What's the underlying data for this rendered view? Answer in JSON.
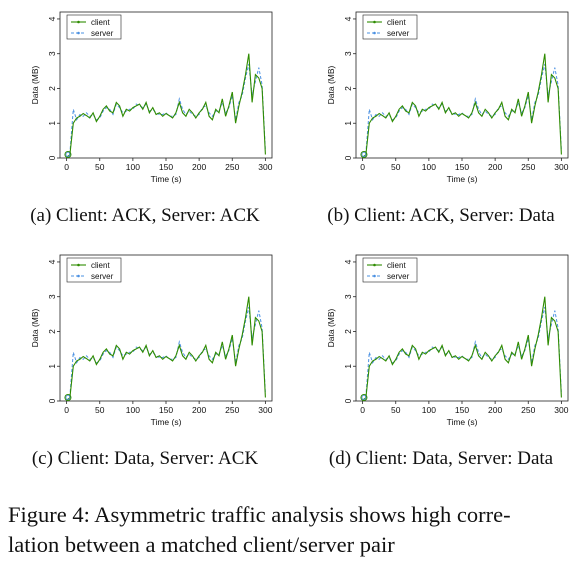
{
  "figure": {
    "caption": "Figure 4: Asymmetric traffic analysis shows high correlation between a matched client/server pair",
    "caption_line1": "Figure 4: Asymmetric traffic analysis shows high corre-",
    "caption_line2": "lation between a matched client/server pair"
  },
  "subfigures": [
    {
      "caption": "(a) Client: ACK, Server: ACK"
    },
    {
      "caption": "(b) Client: ACK, Server: Data"
    },
    {
      "caption": "(c) Client: Data, Server: ACK"
    },
    {
      "caption": "(d) Client: Data, Server: Data"
    }
  ],
  "colors": {
    "client": "#2e8b00",
    "server": "#4a90e2"
  },
  "chart_data": [
    {
      "type": "line",
      "xlabel": "Time (s)",
      "ylabel": "Data (MB)",
      "xlim": [
        -10,
        310
      ],
      "ylim": [
        0,
        4.2
      ],
      "xticks": [
        0,
        50,
        100,
        150,
        200,
        250,
        300
      ],
      "yticks": [
        0,
        1,
        2,
        3,
        4
      ],
      "legend": "top-left",
      "series": [
        {
          "name": "client",
          "x": [
            0,
            5,
            10,
            15,
            20,
            25,
            30,
            35,
            40,
            45,
            50,
            55,
            60,
            65,
            70,
            75,
            80,
            85,
            90,
            95,
            100,
            105,
            110,
            115,
            120,
            125,
            130,
            135,
            140,
            145,
            150,
            155,
            160,
            165,
            170,
            175,
            180,
            185,
            190,
            195,
            200,
            205,
            210,
            215,
            220,
            225,
            230,
            235,
            240,
            245,
            250,
            255,
            260,
            265,
            270,
            275,
            280,
            285,
            290,
            295,
            300
          ],
          "y": [
            0,
            0.1,
            1.0,
            1.15,
            1.2,
            1.28,
            1.22,
            1.15,
            1.3,
            1.05,
            1.2,
            1.4,
            1.5,
            1.35,
            1.3,
            1.6,
            1.5,
            1.2,
            1.4,
            1.35,
            1.45,
            1.5,
            1.55,
            1.4,
            1.6,
            1.3,
            1.45,
            1.25,
            1.3,
            1.2,
            1.28,
            1.22,
            1.15,
            1.3,
            1.6,
            1.3,
            1.2,
            1.4,
            1.3,
            1.15,
            1.3,
            1.4,
            1.6,
            1.2,
            1.1,
            1.4,
            1.3,
            1.7,
            1.2,
            1.5,
            1.9,
            1.0,
            1.5,
            1.9,
            2.4,
            3.0,
            1.6,
            2.4,
            2.3,
            2.0,
            0.1
          ]
        },
        {
          "name": "server",
          "x": [
            0,
            5,
            10,
            15,
            20,
            25,
            30,
            35,
            40,
            45,
            50,
            55,
            60,
            65,
            70,
            75,
            80,
            85,
            90,
            95,
            100,
            105,
            110,
            115,
            120,
            125,
            130,
            135,
            140,
            145,
            150,
            155,
            160,
            165,
            170,
            175,
            180,
            185,
            190,
            195,
            200,
            205,
            210,
            215,
            220,
            225,
            230,
            235,
            240,
            245,
            250,
            255,
            260,
            265,
            270,
            275,
            280,
            285,
            290,
            295,
            300
          ],
          "y": [
            0,
            0.15,
            1.4,
            1.1,
            1.25,
            1.2,
            1.3,
            1.2,
            1.25,
            1.1,
            1.15,
            1.35,
            1.45,
            1.4,
            1.25,
            1.55,
            1.45,
            1.3,
            1.35,
            1.4,
            1.4,
            1.55,
            1.5,
            1.45,
            1.55,
            1.35,
            1.4,
            1.3,
            1.25,
            1.25,
            1.3,
            1.2,
            1.2,
            1.25,
            1.7,
            1.4,
            1.25,
            1.35,
            1.25,
            1.2,
            1.25,
            1.45,
            1.5,
            1.3,
            1.2,
            1.35,
            1.35,
            1.6,
            1.3,
            1.45,
            1.8,
            1.1,
            1.6,
            1.8,
            2.3,
            2.7,
            1.8,
            2.2,
            2.6,
            2.1,
            0.2
          ]
        }
      ]
    },
    {
      "type": "line",
      "xlabel": "Time (s)",
      "ylabel": "Data (MB)",
      "xlim": [
        -10,
        310
      ],
      "ylim": [
        0,
        4.2
      ],
      "xticks": [
        0,
        50,
        100,
        150,
        200,
        250,
        300
      ],
      "yticks": [
        0,
        1,
        2,
        3,
        4
      ],
      "legend": "top-left",
      "series": [
        {
          "name": "client",
          "x": [
            0,
            5,
            10,
            15,
            20,
            25,
            30,
            35,
            40,
            45,
            50,
            55,
            60,
            65,
            70,
            75,
            80,
            85,
            90,
            95,
            100,
            105,
            110,
            115,
            120,
            125,
            130,
            135,
            140,
            145,
            150,
            155,
            160,
            165,
            170,
            175,
            180,
            185,
            190,
            195,
            200,
            205,
            210,
            215,
            220,
            225,
            230,
            235,
            240,
            245,
            250,
            255,
            260,
            265,
            270,
            275,
            280,
            285,
            290,
            295,
            300
          ],
          "y": [
            0,
            0.1,
            1.0,
            1.15,
            1.2,
            1.28,
            1.22,
            1.15,
            1.3,
            1.05,
            1.2,
            1.4,
            1.5,
            1.35,
            1.3,
            1.6,
            1.5,
            1.2,
            1.4,
            1.35,
            1.45,
            1.5,
            1.55,
            1.4,
            1.6,
            1.3,
            1.45,
            1.25,
            1.3,
            1.2,
            1.28,
            1.22,
            1.15,
            1.3,
            1.6,
            1.3,
            1.2,
            1.4,
            1.3,
            1.15,
            1.3,
            1.4,
            1.6,
            1.2,
            1.1,
            1.4,
            1.3,
            1.7,
            1.2,
            1.5,
            1.9,
            1.0,
            1.5,
            1.9,
            2.4,
            3.0,
            1.6,
            2.4,
            2.3,
            2.0,
            0.1
          ]
        },
        {
          "name": "server",
          "x": [
            0,
            5,
            10,
            15,
            20,
            25,
            30,
            35,
            40,
            45,
            50,
            55,
            60,
            65,
            70,
            75,
            80,
            85,
            90,
            95,
            100,
            105,
            110,
            115,
            120,
            125,
            130,
            135,
            140,
            145,
            150,
            155,
            160,
            165,
            170,
            175,
            180,
            185,
            190,
            195,
            200,
            205,
            210,
            215,
            220,
            225,
            230,
            235,
            240,
            245,
            250,
            255,
            260,
            265,
            270,
            275,
            280,
            285,
            290,
            295,
            300
          ],
          "y": [
            0,
            0.15,
            1.4,
            1.1,
            1.25,
            1.2,
            1.3,
            1.2,
            1.25,
            1.1,
            1.15,
            1.35,
            1.45,
            1.4,
            1.25,
            1.55,
            1.45,
            1.3,
            1.35,
            1.4,
            1.4,
            1.55,
            1.5,
            1.45,
            1.55,
            1.35,
            1.4,
            1.3,
            1.25,
            1.25,
            1.3,
            1.2,
            1.2,
            1.25,
            1.7,
            1.4,
            1.25,
            1.35,
            1.25,
            1.2,
            1.25,
            1.45,
            1.5,
            1.3,
            1.2,
            1.35,
            1.35,
            1.6,
            1.3,
            1.45,
            1.8,
            1.1,
            1.6,
            1.8,
            2.3,
            2.7,
            1.8,
            2.2,
            2.6,
            2.1,
            0.2
          ]
        }
      ]
    },
    {
      "type": "line",
      "xlabel": "Time (s)",
      "ylabel": "Data (MB)",
      "xlim": [
        -10,
        310
      ],
      "ylim": [
        0,
        4.2
      ],
      "xticks": [
        0,
        50,
        100,
        150,
        200,
        250,
        300
      ],
      "yticks": [
        0,
        1,
        2,
        3,
        4
      ],
      "legend": "top-left",
      "series": [
        {
          "name": "client",
          "x": [
            0,
            5,
            10,
            15,
            20,
            25,
            30,
            35,
            40,
            45,
            50,
            55,
            60,
            65,
            70,
            75,
            80,
            85,
            90,
            95,
            100,
            105,
            110,
            115,
            120,
            125,
            130,
            135,
            140,
            145,
            150,
            155,
            160,
            165,
            170,
            175,
            180,
            185,
            190,
            195,
            200,
            205,
            210,
            215,
            220,
            225,
            230,
            235,
            240,
            245,
            250,
            255,
            260,
            265,
            270,
            275,
            280,
            285,
            290,
            295,
            300
          ],
          "y": [
            0,
            0.1,
            1.0,
            1.15,
            1.2,
            1.28,
            1.22,
            1.15,
            1.3,
            1.05,
            1.2,
            1.4,
            1.5,
            1.35,
            1.3,
            1.6,
            1.5,
            1.2,
            1.4,
            1.35,
            1.45,
            1.5,
            1.55,
            1.4,
            1.6,
            1.3,
            1.45,
            1.25,
            1.3,
            1.2,
            1.28,
            1.22,
            1.15,
            1.3,
            1.6,
            1.3,
            1.2,
            1.4,
            1.3,
            1.15,
            1.3,
            1.4,
            1.6,
            1.2,
            1.1,
            1.4,
            1.3,
            1.7,
            1.2,
            1.5,
            1.9,
            1.0,
            1.5,
            1.9,
            2.4,
            3.0,
            1.6,
            2.4,
            2.3,
            2.0,
            0.1
          ]
        },
        {
          "name": "server",
          "x": [
            0,
            5,
            10,
            15,
            20,
            25,
            30,
            35,
            40,
            45,
            50,
            55,
            60,
            65,
            70,
            75,
            80,
            85,
            90,
            95,
            100,
            105,
            110,
            115,
            120,
            125,
            130,
            135,
            140,
            145,
            150,
            155,
            160,
            165,
            170,
            175,
            180,
            185,
            190,
            195,
            200,
            205,
            210,
            215,
            220,
            225,
            230,
            235,
            240,
            245,
            250,
            255,
            260,
            265,
            270,
            275,
            280,
            285,
            290,
            295,
            300
          ],
          "y": [
            0,
            0.15,
            1.4,
            1.1,
            1.25,
            1.2,
            1.3,
            1.2,
            1.25,
            1.1,
            1.15,
            1.35,
            1.45,
            1.4,
            1.25,
            1.55,
            1.45,
            1.3,
            1.35,
            1.4,
            1.4,
            1.55,
            1.5,
            1.45,
            1.55,
            1.35,
            1.4,
            1.3,
            1.25,
            1.25,
            1.3,
            1.2,
            1.2,
            1.25,
            1.7,
            1.4,
            1.25,
            1.35,
            1.25,
            1.2,
            1.25,
            1.45,
            1.5,
            1.3,
            1.2,
            1.35,
            1.35,
            1.6,
            1.3,
            1.45,
            1.8,
            1.1,
            1.6,
            1.8,
            2.3,
            2.7,
            1.8,
            2.2,
            2.6,
            2.1,
            0.2
          ]
        }
      ]
    },
    {
      "type": "line",
      "xlabel": "Time (s)",
      "ylabel": "Data (MB)",
      "xlim": [
        -10,
        310
      ],
      "ylim": [
        0,
        4.2
      ],
      "xticks": [
        0,
        50,
        100,
        150,
        200,
        250,
        300
      ],
      "yticks": [
        0,
        1,
        2,
        3,
        4
      ],
      "legend": "top-left",
      "series": [
        {
          "name": "client",
          "x": [
            0,
            5,
            10,
            15,
            20,
            25,
            30,
            35,
            40,
            45,
            50,
            55,
            60,
            65,
            70,
            75,
            80,
            85,
            90,
            95,
            100,
            105,
            110,
            115,
            120,
            125,
            130,
            135,
            140,
            145,
            150,
            155,
            160,
            165,
            170,
            175,
            180,
            185,
            190,
            195,
            200,
            205,
            210,
            215,
            220,
            225,
            230,
            235,
            240,
            245,
            250,
            255,
            260,
            265,
            270,
            275,
            280,
            285,
            290,
            295,
            300
          ],
          "y": [
            0,
            0.1,
            1.0,
            1.15,
            1.2,
            1.28,
            1.22,
            1.15,
            1.3,
            1.05,
            1.2,
            1.4,
            1.5,
            1.35,
            1.3,
            1.6,
            1.5,
            1.2,
            1.4,
            1.35,
            1.45,
            1.5,
            1.55,
            1.4,
            1.6,
            1.3,
            1.45,
            1.25,
            1.3,
            1.2,
            1.28,
            1.22,
            1.15,
            1.3,
            1.6,
            1.3,
            1.2,
            1.4,
            1.3,
            1.15,
            1.3,
            1.4,
            1.6,
            1.2,
            1.1,
            1.4,
            1.3,
            1.7,
            1.2,
            1.5,
            1.9,
            1.0,
            1.5,
            1.9,
            2.4,
            3.0,
            1.6,
            2.4,
            2.3,
            2.0,
            0.1
          ]
        },
        {
          "name": "server",
          "x": [
            0,
            5,
            10,
            15,
            20,
            25,
            30,
            35,
            40,
            45,
            50,
            55,
            60,
            65,
            70,
            75,
            80,
            85,
            90,
            95,
            100,
            105,
            110,
            115,
            120,
            125,
            130,
            135,
            140,
            145,
            150,
            155,
            160,
            165,
            170,
            175,
            180,
            185,
            190,
            195,
            200,
            205,
            210,
            215,
            220,
            225,
            230,
            235,
            240,
            245,
            250,
            255,
            260,
            265,
            270,
            275,
            280,
            285,
            290,
            295,
            300
          ],
          "y": [
            0,
            0.15,
            1.4,
            1.1,
            1.25,
            1.2,
            1.3,
            1.2,
            1.25,
            1.1,
            1.15,
            1.35,
            1.45,
            1.4,
            1.25,
            1.55,
            1.45,
            1.3,
            1.35,
            1.4,
            1.4,
            1.55,
            1.5,
            1.45,
            1.55,
            1.35,
            1.4,
            1.3,
            1.25,
            1.25,
            1.3,
            1.2,
            1.2,
            1.25,
            1.7,
            1.4,
            1.25,
            1.35,
            1.25,
            1.2,
            1.25,
            1.45,
            1.5,
            1.3,
            1.2,
            1.35,
            1.35,
            1.6,
            1.3,
            1.45,
            1.8,
            1.1,
            1.6,
            1.8,
            2.3,
            2.7,
            1.8,
            2.2,
            2.6,
            2.1,
            0.2
          ]
        }
      ]
    }
  ]
}
